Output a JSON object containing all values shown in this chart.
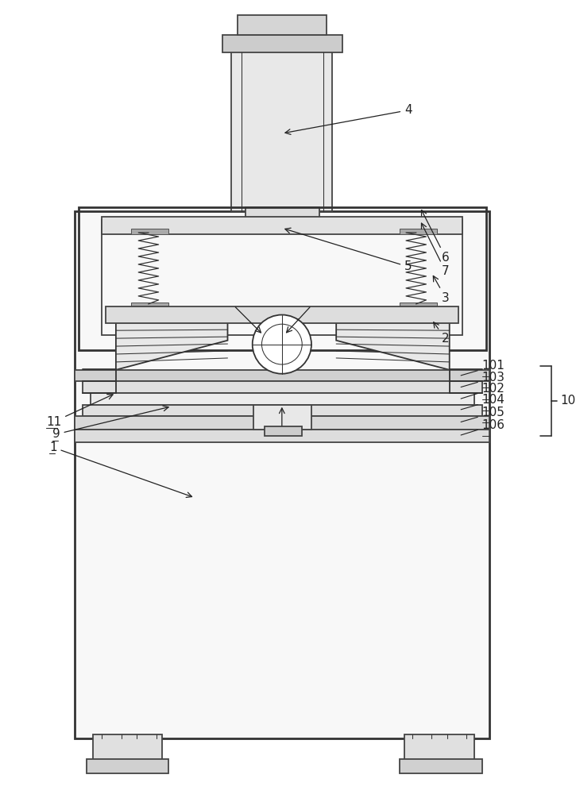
{
  "bg_color": "#ffffff",
  "line_color": "#333333",
  "label_color": "#222222",
  "fig_width": 7.25,
  "fig_height": 10.0,
  "dpi": 100
}
